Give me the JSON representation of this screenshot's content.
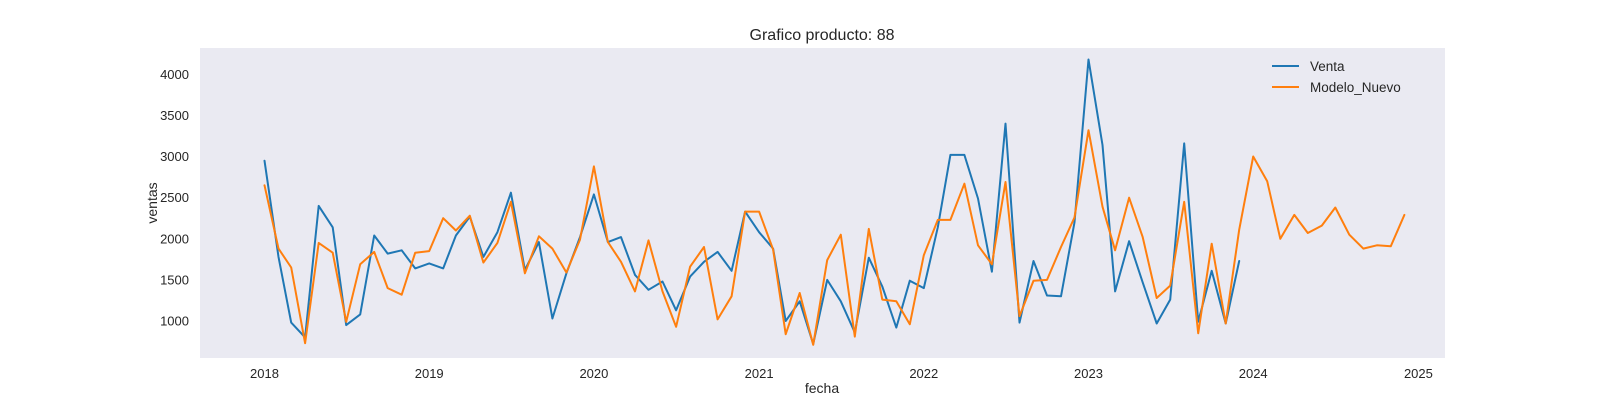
{
  "chart_data": {
    "type": "line",
    "title": "Grafico producto: 88",
    "xlabel": "fecha",
    "ylabel": "ventas",
    "xlim": [
      "2017-08-11",
      "2025-03-01"
    ],
    "ylim": [
      550,
      4320
    ],
    "grid": false,
    "legend_position": "top-right",
    "background": "#eaeaf2",
    "x_ticks": [
      {
        "date": "2018-01-01",
        "label": "2018"
      },
      {
        "date": "2019-01-01",
        "label": "2019"
      },
      {
        "date": "2020-01-01",
        "label": "2020"
      },
      {
        "date": "2021-01-01",
        "label": "2021"
      },
      {
        "date": "2022-01-01",
        "label": "2022"
      },
      {
        "date": "2023-01-01",
        "label": "2023"
      },
      {
        "date": "2024-01-01",
        "label": "2024"
      },
      {
        "date": "2025-01-01",
        "label": "2025"
      }
    ],
    "y_ticks": [
      {
        "value": 1000,
        "label": "1000"
      },
      {
        "value": 1500,
        "label": "1500"
      },
      {
        "value": 2000,
        "label": "2000"
      },
      {
        "value": 2500,
        "label": "2500"
      },
      {
        "value": 3000,
        "label": "3000"
      },
      {
        "value": 3500,
        "label": "3500"
      },
      {
        "value": 4000,
        "label": "4000"
      }
    ],
    "series": [
      {
        "name": "Venta",
        "color": "#1f77b4",
        "start": "2018-01",
        "values": [
          2950,
          1780,
          980,
          800,
          2400,
          2140,
          950,
          1080,
          2040,
          1820,
          1860,
          1640,
          1700,
          1640,
          2040,
          2270,
          1780,
          2080,
          2560,
          1620,
          1960,
          1030,
          1580,
          2020,
          2540,
          1960,
          2020,
          1560,
          1380,
          1480,
          1130,
          1540,
          1720,
          1840,
          1610,
          2330,
          2080,
          1880,
          1000,
          1240,
          720,
          1500,
          1240,
          860,
          1770,
          1420,
          920,
          1490,
          1400,
          2140,
          3020,
          3020,
          2490,
          1600,
          3400,
          980,
          1730,
          1310,
          1300,
          2200,
          4180,
          3140,
          1360,
          1970,
          1470,
          970,
          1260,
          3160,
          990,
          1610,
          970,
          1730
        ]
      },
      {
        "name": "Modelo_Nuevo",
        "color": "#ff7f0e",
        "start": "2018-01",
        "values": [
          2650,
          1880,
          1650,
          730,
          1950,
          1830,
          990,
          1690,
          1840,
          1400,
          1320,
          1830,
          1850,
          2250,
          2100,
          2280,
          1710,
          1950,
          2450,
          1580,
          2030,
          1880,
          1590,
          1990,
          2880,
          1960,
          1720,
          1360,
          1980,
          1360,
          930,
          1660,
          1900,
          1020,
          1300,
          2330,
          2330,
          1870,
          840,
          1340,
          710,
          1740,
          2050,
          810,
          2120,
          1260,
          1240,
          960,
          1800,
          2230,
          2230,
          2670,
          1920,
          1690,
          2690,
          1060,
          1490,
          1500,
          1900,
          2260,
          3320,
          2390,
          1860,
          2500,
          2020,
          1280,
          1430,
          2450,
          850,
          1940,
          970,
          2110,
          3000,
          2700,
          2000,
          2290,
          2070,
          2160,
          2380,
          2050,
          1880,
          1920,
          1910,
          2290
        ]
      }
    ]
  }
}
